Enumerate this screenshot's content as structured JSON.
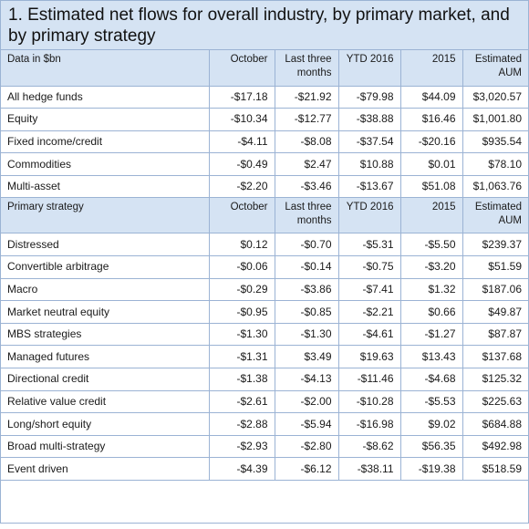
{
  "title": "1. Estimated net flows for overall industry, by primary market, and by primary strategy",
  "market_section": {
    "header": [
      "Data in $bn",
      "October",
      "Last three months",
      "YTD 2016",
      "2015",
      "Estimated AUM"
    ],
    "rows": [
      [
        "All hedge funds",
        "-$17.18",
        "-$21.92",
        "-$79.98",
        "$44.09",
        "$3,020.57"
      ],
      [
        "Equity",
        "-$10.34",
        "-$12.77",
        "-$38.88",
        "$16.46",
        "$1,001.80"
      ],
      [
        "Fixed income/credit",
        "-$4.11",
        "-$8.08",
        "-$37.54",
        "-$20.16",
        "$935.54"
      ],
      [
        "Commodities",
        "-$0.49",
        "$2.47",
        "$10.88",
        "$0.01",
        "$78.10"
      ],
      [
        "Multi-asset",
        "-$2.20",
        "-$3.46",
        "-$13.67",
        "$51.08",
        "$1,063.76"
      ]
    ]
  },
  "strategy_section": {
    "header": [
      "Primary strategy",
      "October",
      "Last three months",
      "YTD 2016",
      "2015",
      "Estimated AUM"
    ],
    "rows": [
      [
        "Distressed",
        "$0.12",
        "-$0.70",
        "-$5.31",
        "-$5.50",
        "$239.37"
      ],
      [
        "Convertible arbitrage",
        "-$0.06",
        "-$0.14",
        "-$0.75",
        "-$3.20",
        "$51.59"
      ],
      [
        "Macro",
        "-$0.29",
        "-$3.86",
        "-$7.41",
        "$1.32",
        "$187.06"
      ],
      [
        "Market neutral equity",
        "-$0.95",
        "-$0.85",
        "-$2.21",
        "$0.66",
        "$49.87"
      ],
      [
        "MBS strategies",
        "-$1.30",
        "-$1.30",
        "-$4.61",
        "-$1.27",
        "$87.87"
      ],
      [
        "Managed futures",
        "-$1.31",
        "$3.49",
        "$19.63",
        "$13.43",
        "$137.68"
      ],
      [
        "Directional credit",
        "-$1.38",
        "-$4.13",
        "-$11.46",
        "-$4.68",
        "$125.32"
      ],
      [
        "Relative value credit",
        "-$2.61",
        "-$2.00",
        "-$10.28",
        "-$5.53",
        "$225.63"
      ],
      [
        "Long/short equity",
        "-$2.88",
        "-$5.94",
        "-$16.98",
        "$9.02",
        "$684.88"
      ],
      [
        "Broad multi-strategy",
        "-$2.93",
        "-$2.80",
        "-$8.62",
        "$56.35",
        "$492.98"
      ],
      [
        "Event driven",
        "-$4.39",
        "-$6.12",
        "-$38.11",
        "-$19.38",
        "$518.59"
      ]
    ]
  },
  "colors": {
    "header_fill": "#d5e3f3",
    "rule": "#9bb3d4"
  }
}
